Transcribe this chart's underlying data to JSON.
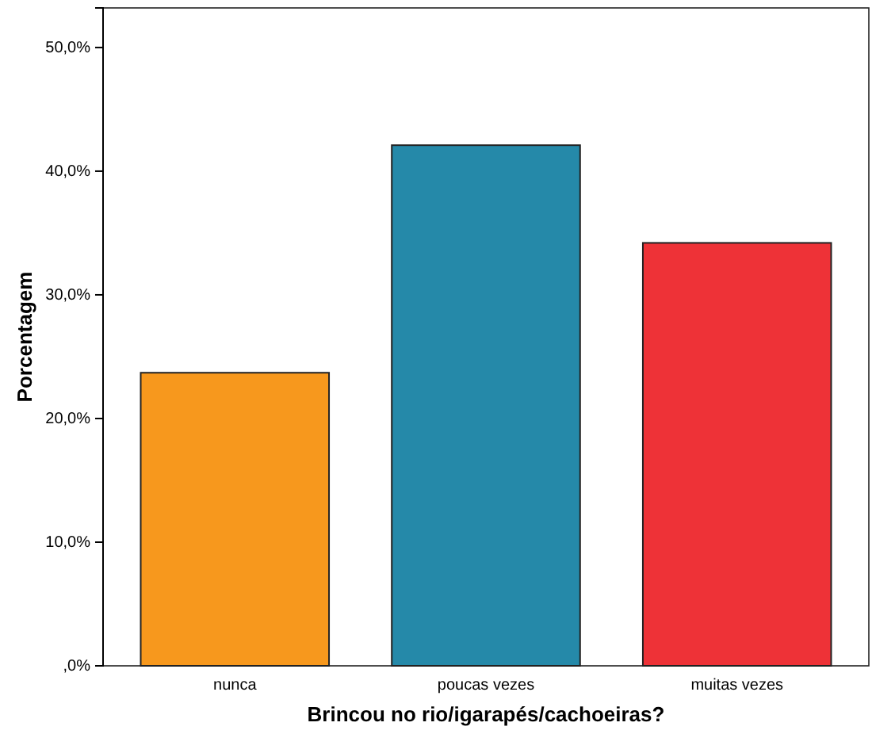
{
  "chart_data": {
    "type": "bar",
    "xlabel": "Brincou no rio/igarapés/cachoeiras?",
    "ylabel": "Porcentagem",
    "categories": [
      "nunca",
      "poucas vezes",
      "muitas vezes"
    ],
    "values": [
      23.7,
      42.1,
      34.2
    ],
    "colors": [
      "#f7981d",
      "#2589a9",
      "#ee3237"
    ],
    "ylim": [
      0,
      53.2
    ],
    "yticks": [
      {
        "value": 0,
        "label": ",0%"
      },
      {
        "value": 10,
        "label": "10,0%"
      },
      {
        "value": 20,
        "label": "20,0%"
      },
      {
        "value": 30,
        "label": "30,0%"
      },
      {
        "value": 40,
        "label": "40,0%"
      },
      {
        "value": 50,
        "label": "50,0%"
      }
    ],
    "grid": false
  }
}
